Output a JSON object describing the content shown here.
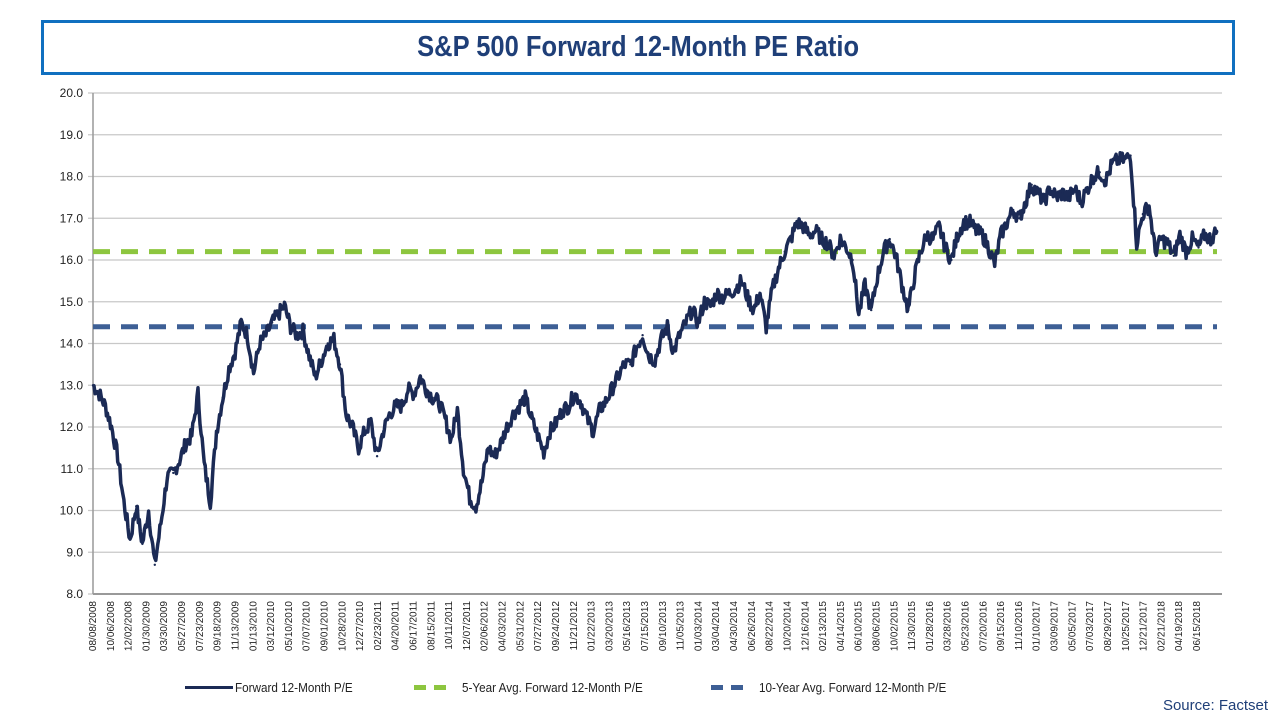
{
  "title": "S&P 500 Forward 12-Month PE Ratio",
  "source": "Source: Factset",
  "colors": {
    "title_border": "#1070c0",
    "title_text": "#1f3f78",
    "series_line": "#1b2a55",
    "five_year_avg": "#8dc63f",
    "ten_year_avg": "#3d5f95",
    "grid": "#c8c8c8",
    "axis": "#999999"
  },
  "chart_data": {
    "type": "line",
    "title": "S&P 500 Forward 12-Month PE Ratio",
    "xlabel": "",
    "ylabel": "",
    "ylim": [
      8.0,
      20.0
    ],
    "yticks": [
      "8.0",
      "9.0",
      "10.0",
      "11.0",
      "12.0",
      "13.0",
      "14.0",
      "15.0",
      "16.0",
      "17.0",
      "18.0",
      "19.0",
      "20.0"
    ],
    "grid": true,
    "legend_position": "bottom",
    "x_tick_labels": [
      "08/08/2008",
      "10/06/2008",
      "12/02/2008",
      "01/30/2009",
      "03/30/2009",
      "05/27/2009",
      "07/23/2009",
      "09/18/2009",
      "11/13/2009",
      "01/13/2010",
      "03/12/2010",
      "05/10/2010",
      "07/07/2010",
      "09/01/2010",
      "10/28/2010",
      "12/27/2010",
      "02/23/2011",
      "04/20/2011",
      "06/17/2011",
      "08/15/2011",
      "10/11/2011",
      "12/07/2011",
      "02/06/2012",
      "04/03/2012",
      "05/31/2012",
      "07/27/2012",
      "09/24/2012",
      "11/21/2012",
      "01/22/2013",
      "03/20/2013",
      "05/16/2013",
      "07/15/2013",
      "09/10/2013",
      "11/05/2013",
      "01/03/2014",
      "03/04/2014",
      "04/30/2014",
      "06/26/2014",
      "08/22/2014",
      "10/20/2014",
      "12/16/2014",
      "02/13/2015",
      "04/14/2015",
      "06/10/2015",
      "08/06/2015",
      "10/02/2015",
      "11/30/2015",
      "01/28/2016",
      "03/28/2016",
      "05/23/2016",
      "07/20/2016",
      "09/15/2016",
      "11/10/2016",
      "01/10/2017",
      "03/09/2017",
      "05/05/2017",
      "07/03/2017",
      "08/29/2017",
      "10/25/2017",
      "12/21/2017",
      "02/21/2018",
      "04/19/2018",
      "06/15/2018"
    ],
    "series": [
      {
        "name": "Forward 12-Month P/E",
        "style": "solid",
        "values": [
          13.0,
          12.8,
          12.5,
          12.0,
          11.3,
          10.2,
          9.3,
          10.1,
          9.2,
          10.0,
          8.7,
          9.7,
          10.8,
          10.9,
          11.2,
          11.6,
          11.8,
          12.8,
          11.1,
          10.2,
          11.9,
          12.7,
          13.4,
          13.8,
          14.5,
          14.2,
          13.3,
          14.0,
          14.2,
          14.5,
          14.7,
          14.9,
          14.4,
          14.2,
          14.3,
          13.7,
          13.2,
          13.6,
          14.0,
          14.1,
          13.5,
          12.3,
          12.0,
          11.5,
          11.9,
          12.1,
          11.3,
          11.9,
          12.3,
          12.5,
          12.5,
          12.9,
          12.8,
          13.2,
          12.9,
          12.7,
          12.6,
          12.2,
          11.7,
          12.4,
          11.0,
          10.3,
          10.1,
          10.7,
          11.5,
          11.3,
          11.6,
          12.0,
          12.3,
          12.5,
          12.7,
          12.2,
          11.8,
          11.4,
          11.9,
          12.1,
          12.4,
          12.5,
          12.8,
          12.6,
          12.2,
          11.9,
          12.4,
          12.6,
          12.9,
          13.2,
          13.5,
          13.5,
          13.9,
          14.2,
          13.7,
          13.6,
          14.1,
          14.4,
          13.8,
          14.2,
          14.5,
          14.8,
          14.5,
          15.0,
          14.9,
          15.2,
          15.1,
          15.2,
          15.3,
          15.5,
          15.1,
          14.8,
          15.2,
          14.4,
          15.3,
          15.8,
          16.2,
          16.5,
          16.9,
          16.8,
          16.6,
          16.7,
          16.5,
          16.4,
          16.1,
          16.5,
          16.3,
          16.0,
          14.7,
          15.4,
          14.8,
          15.6,
          16.2,
          16.5,
          16.1,
          15.4,
          14.8,
          15.6,
          16.2,
          16.6,
          16.5,
          16.8,
          16.3,
          16.0,
          16.6,
          16.9,
          16.9,
          16.7,
          16.6,
          16.3,
          15.9,
          16.6,
          16.9,
          17.2,
          17.0,
          17.4,
          17.8,
          17.6,
          17.4,
          17.7,
          17.5,
          17.6,
          17.5,
          17.7,
          17.4,
          17.7,
          18.0,
          18.1,
          17.9,
          18.3,
          18.4,
          18.4,
          18.5,
          16.4,
          17.1,
          17.3,
          16.2,
          16.5,
          16.4,
          16.1,
          16.6,
          16.2,
          16.5,
          16.3,
          16.6,
          16.5,
          16.7
        ]
      },
      {
        "name": "5-Year Avg. Forward 12-Month P/E",
        "style": "dashed",
        "values": [
          16.2
        ]
      },
      {
        "name": "10-Year Avg. Forward 12-Month P/E",
        "style": "dashed",
        "values": [
          14.4
        ]
      }
    ]
  },
  "legend": {
    "items": [
      {
        "label": "Forward 12-Month P/E"
      },
      {
        "label": "5-Year Avg. Forward 12-Month P/E"
      },
      {
        "label": "10-Year Avg. Forward 12-Month P/E"
      }
    ]
  }
}
